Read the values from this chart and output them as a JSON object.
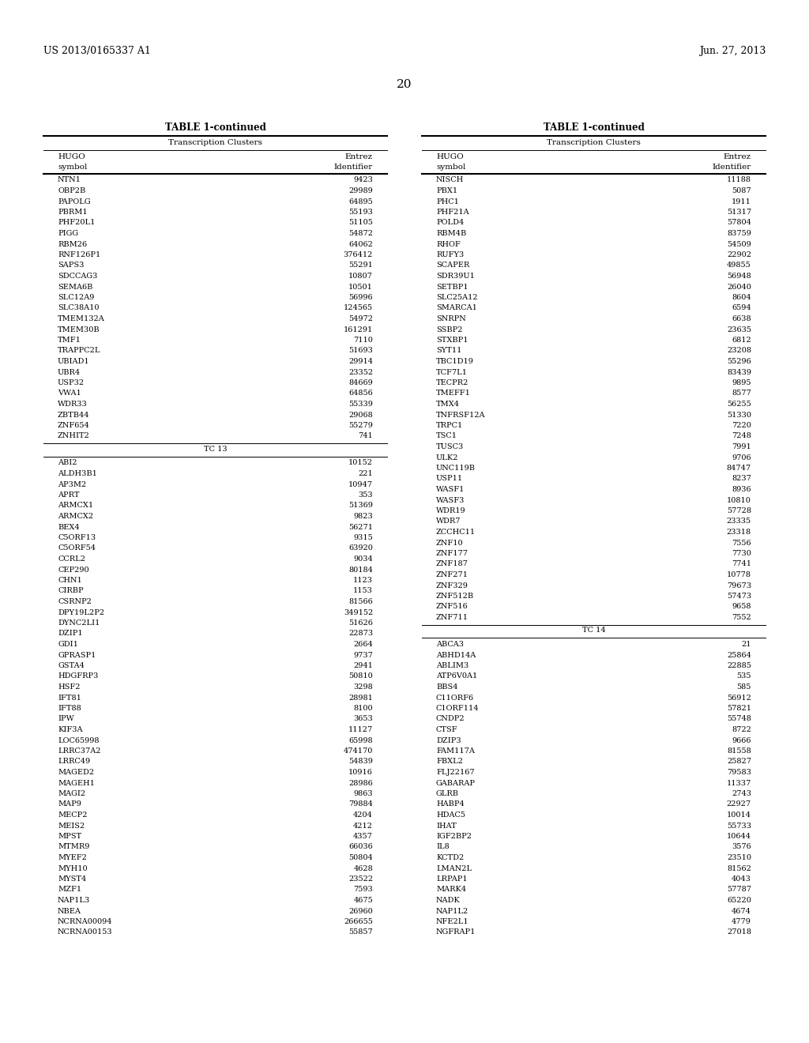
{
  "patent_left": "US 2013/0165337 A1",
  "patent_right": "Jun. 27, 2013",
  "page_number": "20",
  "left_table": {
    "title": "TABLE 1-continued",
    "col_group": "Transcription Clusters",
    "col1_header": [
      "HUGO",
      "symbol"
    ],
    "col2_header": [
      "Entrez",
      "Identifier"
    ],
    "rows": [
      [
        "NTN1",
        "9423"
      ],
      [
        "OBP2B",
        "29989"
      ],
      [
        "PAPOLG",
        "64895"
      ],
      [
        "PBRM1",
        "55193"
      ],
      [
        "PHF20L1",
        "51105"
      ],
      [
        "PIGG",
        "54872"
      ],
      [
        "RBM26",
        "64062"
      ],
      [
        "RNF126P1",
        "376412"
      ],
      [
        "SAPS3",
        "55291"
      ],
      [
        "SDCCAG3",
        "10807"
      ],
      [
        "SEMA6B",
        "10501"
      ],
      [
        "SLC12A9",
        "56996"
      ],
      [
        "SLC38A10",
        "124565"
      ],
      [
        "TMEM132A",
        "54972"
      ],
      [
        "TMEM30B",
        "161291"
      ],
      [
        "TMF1",
        "7110"
      ],
      [
        "TRAPPC2L",
        "51693"
      ],
      [
        "UBIAD1",
        "29914"
      ],
      [
        "UBR4",
        "23352"
      ],
      [
        "USP32",
        "84669"
      ],
      [
        "VWA1",
        "64856"
      ],
      [
        "WDR33",
        "55339"
      ],
      [
        "ZBTB44",
        "29068"
      ],
      [
        "ZNF654",
        "55279"
      ],
      [
        "ZNHIT2",
        "741"
      ],
      [
        "TC 13",
        ""
      ],
      [
        "ABI2",
        "10152"
      ],
      [
        "ALDH3B1",
        "221"
      ],
      [
        "AP3M2",
        "10947"
      ],
      [
        "APRT",
        "353"
      ],
      [
        "ARMCX1",
        "51369"
      ],
      [
        "ARMCX2",
        "9823"
      ],
      [
        "BEX4",
        "56271"
      ],
      [
        "C5ORF13",
        "9315"
      ],
      [
        "C5ORF54",
        "63920"
      ],
      [
        "CCRL2",
        "9034"
      ],
      [
        "CEP290",
        "80184"
      ],
      [
        "CHN1",
        "1123"
      ],
      [
        "CIRBP",
        "1153"
      ],
      [
        "CSRNP2",
        "81566"
      ],
      [
        "DPY19L2P2",
        "349152"
      ],
      [
        "DYNC2LI1",
        "51626"
      ],
      [
        "DZIP1",
        "22873"
      ],
      [
        "GDI1",
        "2664"
      ],
      [
        "GPRASP1",
        "9737"
      ],
      [
        "GSTA4",
        "2941"
      ],
      [
        "HDGFRP3",
        "50810"
      ],
      [
        "HSF2",
        "3298"
      ],
      [
        "IFT81",
        "28981"
      ],
      [
        "IFT88",
        "8100"
      ],
      [
        "IPW",
        "3653"
      ],
      [
        "KIF3A",
        "11127"
      ],
      [
        "LOC65998",
        "65998"
      ],
      [
        "LRRC37A2",
        "474170"
      ],
      [
        "LRRC49",
        "54839"
      ],
      [
        "MAGED2",
        "10916"
      ],
      [
        "MAGEH1",
        "28986"
      ],
      [
        "MAGI2",
        "9863"
      ],
      [
        "MAP9",
        "79884"
      ],
      [
        "MECP2",
        "4204"
      ],
      [
        "MEIS2",
        "4212"
      ],
      [
        "MPST",
        "4357"
      ],
      [
        "MTMR9",
        "66036"
      ],
      [
        "MYEF2",
        "50804"
      ],
      [
        "MYH10",
        "4628"
      ],
      [
        "MYST4",
        "23522"
      ],
      [
        "MZF1",
        "7593"
      ],
      [
        "NAP1L3",
        "4675"
      ],
      [
        "NBEA",
        "26960"
      ],
      [
        "NCRNA00094",
        "266655"
      ],
      [
        "NCRNA00153",
        "55857"
      ]
    ]
  },
  "right_table": {
    "title": "TABLE 1-continued",
    "col_group": "Transcription Clusters",
    "col1_header": [
      "HUGO",
      "symbol"
    ],
    "col2_header": [
      "Entrez",
      "Identifier"
    ],
    "rows": [
      [
        "NISCH",
        "11188"
      ],
      [
        "PBX1",
        "5087"
      ],
      [
        "PHC1",
        "1911"
      ],
      [
        "PHF21A",
        "51317"
      ],
      [
        "POLD4",
        "57804"
      ],
      [
        "RBM4B",
        "83759"
      ],
      [
        "RHOF",
        "54509"
      ],
      [
        "RUFY3",
        "22902"
      ],
      [
        "SCAPER",
        "49855"
      ],
      [
        "SDR39U1",
        "56948"
      ],
      [
        "SETBP1",
        "26040"
      ],
      [
        "SLC25A12",
        "8604"
      ],
      [
        "SMARCA1",
        "6594"
      ],
      [
        "SNRPN",
        "6638"
      ],
      [
        "SSBP2",
        "23635"
      ],
      [
        "STXBP1",
        "6812"
      ],
      [
        "SYT11",
        "23208"
      ],
      [
        "TBC1D19",
        "55296"
      ],
      [
        "TCF7L1",
        "83439"
      ],
      [
        "TECPR2",
        "9895"
      ],
      [
        "TMEFF1",
        "8577"
      ],
      [
        "TMX4",
        "56255"
      ],
      [
        "TNFRSF12A",
        "51330"
      ],
      [
        "TRPC1",
        "7220"
      ],
      [
        "TSC1",
        "7248"
      ],
      [
        "TUSC3",
        "7991"
      ],
      [
        "ULK2",
        "9706"
      ],
      [
        "UNC119B",
        "84747"
      ],
      [
        "USP11",
        "8237"
      ],
      [
        "WASF1",
        "8936"
      ],
      [
        "WASF3",
        "10810"
      ],
      [
        "WDR19",
        "57728"
      ],
      [
        "WDR7",
        "23335"
      ],
      [
        "ZCCHC11",
        "23318"
      ],
      [
        "ZNF10",
        "7556"
      ],
      [
        "ZNF177",
        "7730"
      ],
      [
        "ZNF187",
        "7741"
      ],
      [
        "ZNF271",
        "10778"
      ],
      [
        "ZNF329",
        "79673"
      ],
      [
        "ZNF512B",
        "57473"
      ],
      [
        "ZNF516",
        "9658"
      ],
      [
        "ZNF711",
        "7552"
      ],
      [
        "TC 14",
        ""
      ],
      [
        "ABCA3",
        "21"
      ],
      [
        "ABHD14A",
        "25864"
      ],
      [
        "ABLIM3",
        "22885"
      ],
      [
        "ATP6V0A1",
        "535"
      ],
      [
        "BBS4",
        "585"
      ],
      [
        "C11ORF6",
        "56912"
      ],
      [
        "C1ORF114",
        "57821"
      ],
      [
        "CNDP2",
        "55748"
      ],
      [
        "CTSF",
        "8722"
      ],
      [
        "DZIP3",
        "9666"
      ],
      [
        "FAM117A",
        "81558"
      ],
      [
        "FBXL2",
        "25827"
      ],
      [
        "FLJ22167",
        "79583"
      ],
      [
        "GABARAP",
        "11337"
      ],
      [
        "GLRB",
        "2743"
      ],
      [
        "HABP4",
        "22927"
      ],
      [
        "HDAC5",
        "10014"
      ],
      [
        "IHAT",
        "55733"
      ],
      [
        "IGF2BP2",
        "10644"
      ],
      [
        "IL8",
        "3576"
      ],
      [
        "KCTD2",
        "23510"
      ],
      [
        "LMAN2L",
        "81562"
      ],
      [
        "LRPAP1",
        "4043"
      ],
      [
        "MARK4",
        "57787"
      ],
      [
        "NADK",
        "65220"
      ],
      [
        "NAP1L2",
        "4674"
      ],
      [
        "NFE2L1",
        "4779"
      ],
      [
        "NGFRAP1",
        "27018"
      ]
    ]
  },
  "font_size_data": 7.0,
  "font_size_header": 7.5,
  "font_size_title": 8.5,
  "font_size_patent": 9.0,
  "font_size_page": 11.0,
  "bg_color": "#ffffff",
  "line_color": "#000000"
}
